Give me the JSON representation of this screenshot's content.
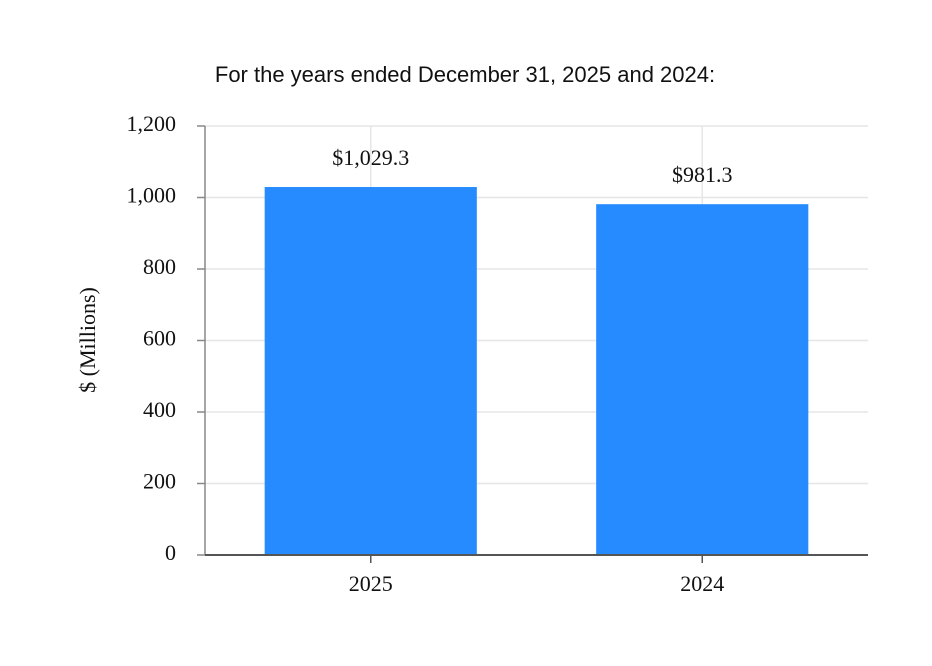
{
  "chart_data": {
    "type": "bar",
    "title": "For the years ended December 31, 2025 and 2024:",
    "y_label": "$ (Millions)",
    "categories": [
      "2025",
      "2024"
    ],
    "values": [
      1029.3,
      981.3
    ],
    "value_labels": [
      "$1,029.3",
      "$981.3"
    ],
    "color": "#268bff",
    "ylim": [
      0,
      1200
    ],
    "yticks": [
      0,
      200,
      400,
      600,
      800,
      {
        "value": 1000,
        "label": "1,000"
      },
      {
        "value": 1200,
        "label": "1,200"
      }
    ],
    "grid": true
  }
}
